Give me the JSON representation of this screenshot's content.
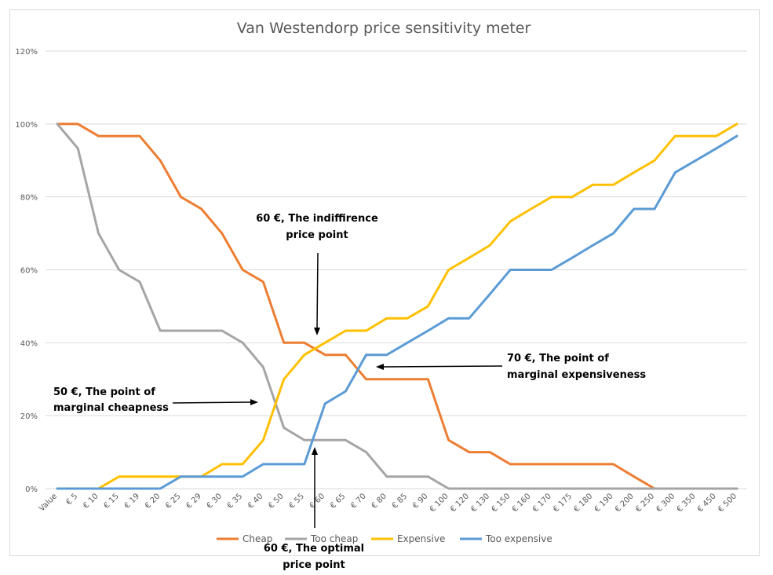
{
  "chart_data": {
    "type": "line",
    "title": "Van Westendorp price sensitivity meter",
    "xlabel": "",
    "ylabel": "",
    "ylim": [
      0,
      120
    ],
    "ytick_labels": [
      "0%",
      "20%",
      "40%",
      "60%",
      "80%",
      "100%",
      "120%"
    ],
    "yticks": [
      0,
      20,
      40,
      60,
      80,
      100,
      120
    ],
    "grid": true,
    "legend_position": "bottom",
    "categories": [
      "Value",
      "€ 5",
      "€ 10",
      "€ 15",
      "€ 19",
      "€ 20",
      "€ 25",
      "€ 29",
      "€ 30",
      "€ 35",
      "€ 40",
      "€ 50",
      "€ 55",
      "€ 60",
      "€ 65",
      "€ 70",
      "€ 80",
      "€ 85",
      "€ 90",
      "€ 100",
      "€ 120",
      "€ 130",
      "€ 150",
      "€ 160",
      "€ 170",
      "€ 175",
      "€ 180",
      "€ 190",
      "€ 200",
      "€ 250",
      "€ 300",
      "€ 350",
      "€ 450",
      "€ 500"
    ],
    "series": [
      {
        "name": "Cheap",
        "color": "#ED7D31",
        "values": [
          100,
          100,
          96.7,
          96.7,
          96.7,
          90,
          80,
          76.7,
          70,
          60,
          56.7,
          40,
          40,
          36.7,
          36.7,
          30,
          30,
          30,
          30,
          13.3,
          10,
          10,
          6.7,
          6.7,
          6.7,
          6.7,
          6.7,
          6.7,
          3.3,
          0,
          0,
          0,
          0,
          0
        ]
      },
      {
        "name": "Too cheap",
        "color": "#A5A5A5",
        "values": [
          100,
          93.3,
          70,
          60,
          56.7,
          43.3,
          43.3,
          43.3,
          43.3,
          40,
          33.3,
          16.7,
          13.3,
          13.3,
          13.3,
          10,
          3.3,
          3.3,
          3.3,
          0,
          0,
          0,
          0,
          0,
          0,
          0,
          0,
          0,
          0,
          0,
          0,
          0,
          0,
          0
        ]
      },
      {
        "name": "Expensive",
        "color": "#FFC000",
        "values": [
          0,
          0,
          0,
          3.3,
          3.3,
          3.3,
          3.3,
          3.3,
          6.7,
          6.7,
          13.3,
          30,
          36.7,
          40,
          43.3,
          43.3,
          46.7,
          46.7,
          50,
          60,
          63.3,
          66.7,
          73.3,
          76.7,
          80,
          80,
          83.3,
          83.3,
          86.7,
          90,
          96.7,
          96.7,
          96.7,
          100
        ]
      },
      {
        "name": "Too expensive",
        "color": "#5B9BD5",
        "values": [
          0,
          0,
          0,
          0,
          0,
          0,
          3.3,
          3.3,
          3.3,
          3.3,
          6.7,
          6.7,
          6.7,
          23.3,
          26.7,
          36.7,
          36.7,
          40,
          43.3,
          46.7,
          46.7,
          53.3,
          60,
          60,
          60,
          63.3,
          66.7,
          70,
          76.7,
          76.7,
          86.7,
          90,
          93.3,
          96.7
        ]
      }
    ],
    "annotations": [
      {
        "line1": "60 €, The indiffirence",
        "line2": "price point"
      },
      {
        "line1": "70 €, The point of",
        "line2": "marginal expensiveness"
      },
      {
        "line1": "50 €, The point of",
        "line2": "marginal cheapness"
      },
      {
        "line1": "60 €, The optimal",
        "line2": "price point"
      }
    ]
  }
}
